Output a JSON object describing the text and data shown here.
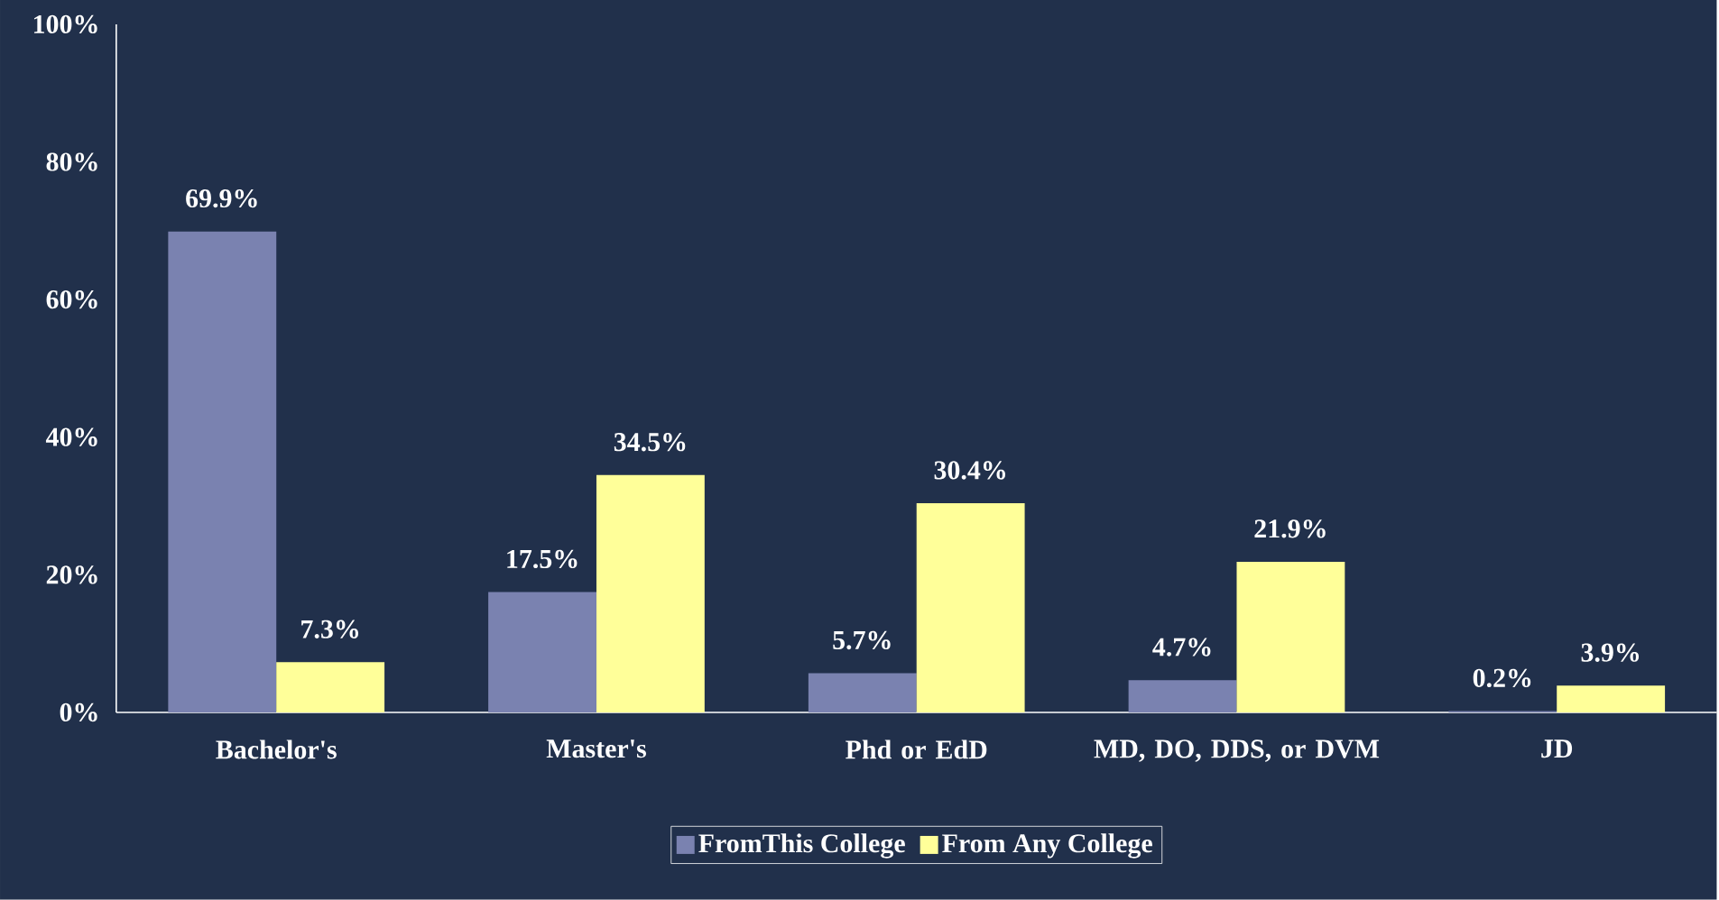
{
  "chart_data": {
    "type": "bar",
    "categories": [
      "Bachelor's",
      "Master's",
      "Phd or EdD",
      "MD, DO, DDS, or DVM",
      "JD"
    ],
    "series": [
      {
        "name": "FromThis College",
        "color": "#7a82b0",
        "values": [
          69.9,
          17.5,
          5.7,
          4.7,
          0.2
        ],
        "value_labels": [
          "69.9%",
          "17.5%",
          "5.7%",
          "4.7%",
          "0.2%"
        ]
      },
      {
        "name": "From Any College",
        "color": "#ffff99",
        "values": [
          7.3,
          34.5,
          30.4,
          21.9,
          3.9
        ],
        "value_labels": [
          "7.3%",
          "34.5%",
          "30.4%",
          "21.9%",
          "3.9%"
        ]
      }
    ],
    "ylim": [
      0,
      100
    ],
    "yticks": [
      {
        "value": 0,
        "label": "0%"
      },
      {
        "value": 20,
        "label": "20%"
      },
      {
        "value": 40,
        "label": "40%"
      },
      {
        "value": 60,
        "label": "60%"
      },
      {
        "value": 80,
        "label": "80%"
      },
      {
        "value": 100,
        "label": "100%"
      }
    ],
    "legend": "bottom",
    "grid": false
  }
}
